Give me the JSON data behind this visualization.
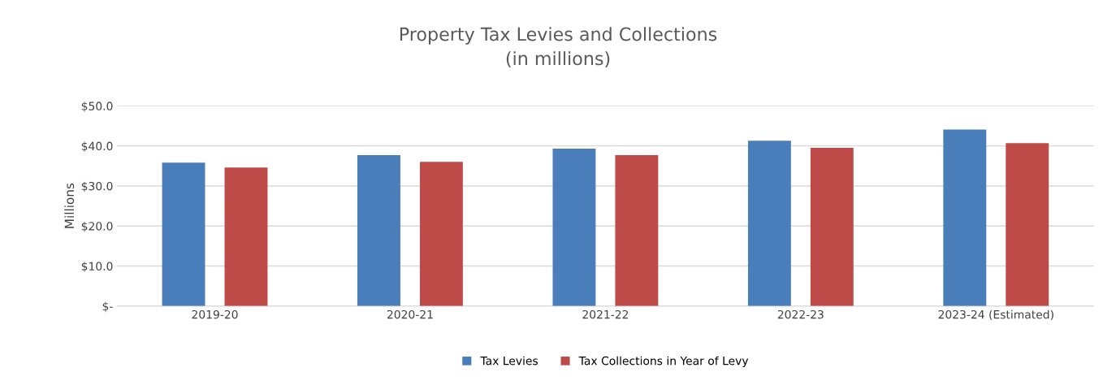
{
  "chart_data": {
    "type": "bar",
    "title": "Property Tax Levies and Collections\n(in millions)",
    "ylabel": "Millions",
    "categories": [
      "2019-20",
      "2020-21",
      "2021-22",
      "2022-23",
      "2023-24 (Estimated)"
    ],
    "series": [
      {
        "name": "Tax Levies",
        "color": "#4a7ebb",
        "values": [
          35.8,
          37.7,
          39.3,
          41.3,
          44.1
        ]
      },
      {
        "name": "Tax Collections in Year of Levy",
        "color": "#be4b48",
        "values": [
          34.6,
          36.0,
          37.7,
          39.5,
          40.7
        ]
      }
    ],
    "ylim": [
      0,
      50
    ],
    "yticks": [
      {
        "value": 0,
        "label": "$-"
      },
      {
        "value": 10,
        "label": "$10.0"
      },
      {
        "value": 20,
        "label": "$20.0"
      },
      {
        "value": 30,
        "label": "$30.0"
      },
      {
        "value": 40,
        "label": "$40.0"
      },
      {
        "value": 50,
        "label": "$50.0"
      }
    ],
    "grid": "y",
    "legend": "bottom"
  }
}
